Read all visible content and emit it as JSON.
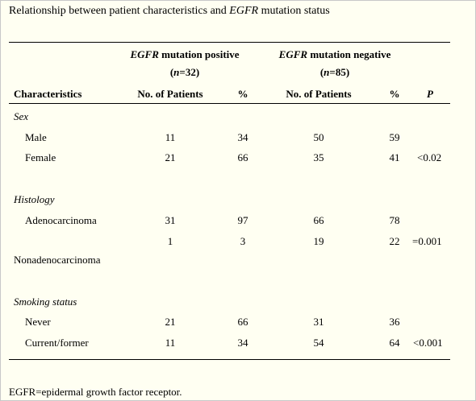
{
  "caption": {
    "prefix": "Relationship between patient characteristics and ",
    "gene": "EGFR",
    "suffix": " mutation status"
  },
  "groups": [
    {
      "gene": "EGFR",
      "label": " mutation positive",
      "n_pre": "(",
      "n_var": "n",
      "n_post": "=32)"
    },
    {
      "gene": "EGFR",
      "label": " mutation negative",
      "n_pre": "(",
      "n_var": "n",
      "n_post": "=85)"
    }
  ],
  "columns": {
    "characteristics": "Characteristics",
    "pos_patients": "No. of Patients",
    "pos_pct": "%",
    "neg_patients": "No. of Patients",
    "neg_pct": "%",
    "p": "P"
  },
  "sections": [
    {
      "title": "Sex",
      "rows": [
        {
          "label": "Male",
          "pos_n": "11",
          "pos_pct": "34",
          "neg_n": "50",
          "neg_pct": "59",
          "p": ""
        },
        {
          "label": "Female",
          "pos_n": "21",
          "pos_pct": "66",
          "neg_n": "35",
          "neg_pct": "41",
          "p": "<0.02"
        }
      ]
    },
    {
      "title": "Histology",
      "rows": [
        {
          "label": "Adenocarcinoma",
          "pos_n": "31",
          "pos_pct": "97",
          "neg_n": "66",
          "neg_pct": "78",
          "p": ""
        },
        {
          "label": "Nonadenocarcinoma",
          "pos_n": "1",
          "pos_pct": "3",
          "neg_n": "19",
          "neg_pct": "22",
          "p": "=0.001"
        }
      ]
    },
    {
      "title": "Smoking status",
      "rows": [
        {
          "label": "Never",
          "pos_n": "21",
          "pos_pct": "66",
          "neg_n": "31",
          "neg_pct": "36",
          "p": ""
        },
        {
          "label": "Current/former",
          "pos_n": "11",
          "pos_pct": "34",
          "neg_n": "54",
          "neg_pct": "64",
          "p": "<0.001"
        }
      ]
    }
  ],
  "footnote": "EGFR=epidermal growth factor receptor."
}
